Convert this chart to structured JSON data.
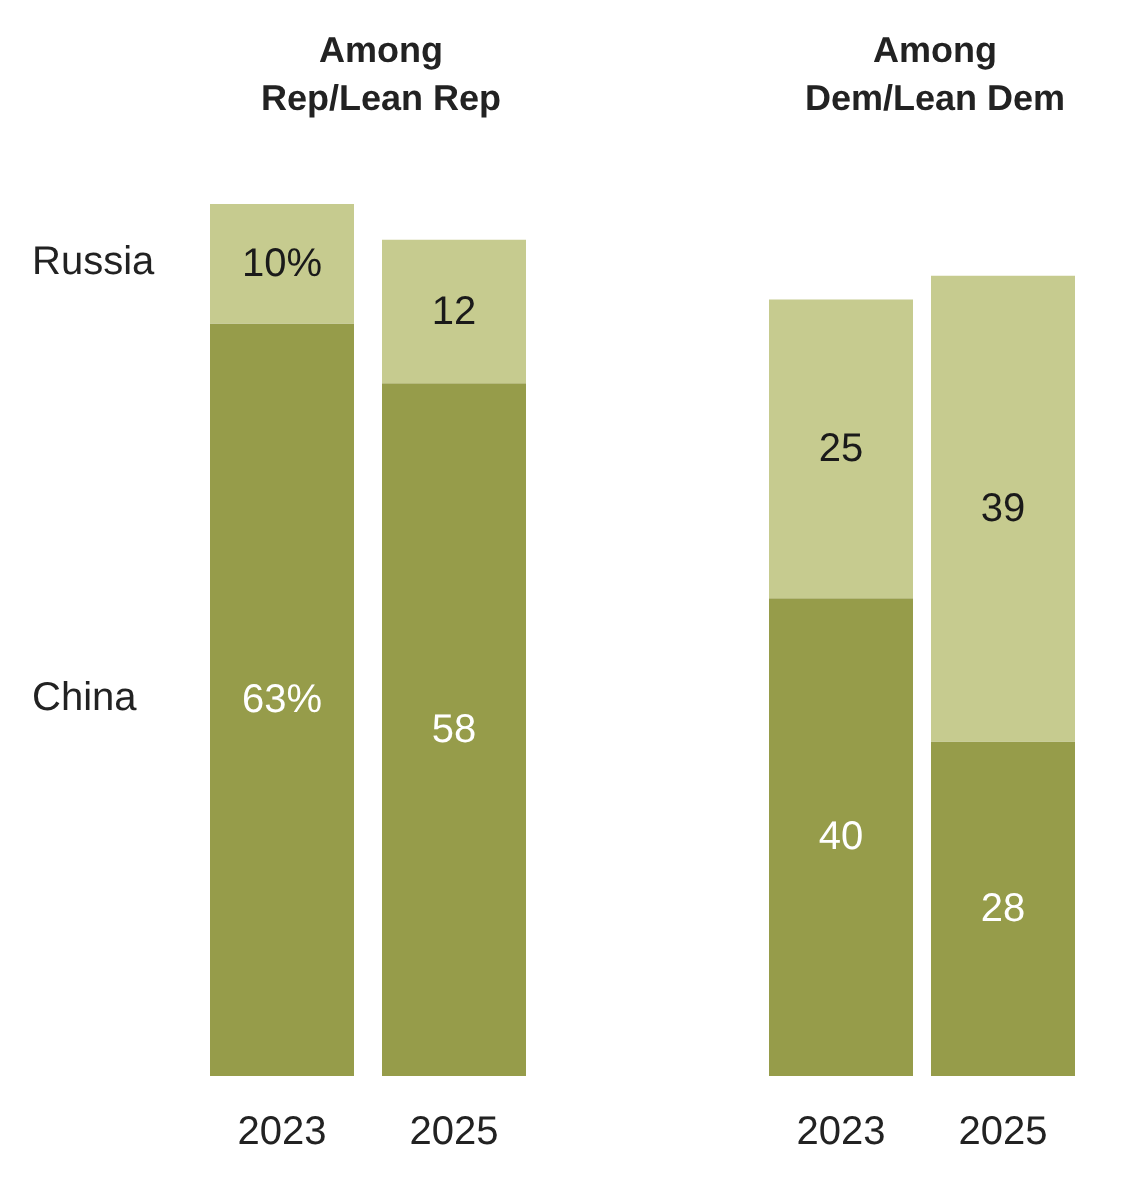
{
  "chart_data": [
    {
      "type": "bar",
      "title": "Among\nRep/Lean Rep",
      "categories": [
        "2023",
        "2025"
      ],
      "stacked": true,
      "series": [
        {
          "name": "China",
          "color": "#969c4a",
          "values": [
            63,
            58
          ],
          "value_labels": [
            "63%",
            "58"
          ]
        },
        {
          "name": "Russia",
          "color": "#c6cb8f",
          "values": [
            10,
            12
          ],
          "value_labels": [
            "10%",
            "12"
          ]
        }
      ]
    },
    {
      "type": "bar",
      "title": "Among\nDem/Lean Dem",
      "categories": [
        "2023",
        "2025"
      ],
      "stacked": true,
      "series": [
        {
          "color": "#969c4a",
          "values": [
            40,
            28
          ],
          "value_labels": [
            "40",
            "28"
          ]
        },
        {
          "color": "#c6cb8f",
          "values": [
            25,
            39
          ],
          "value_labels": [
            "25",
            "39"
          ]
        }
      ]
    }
  ]
}
